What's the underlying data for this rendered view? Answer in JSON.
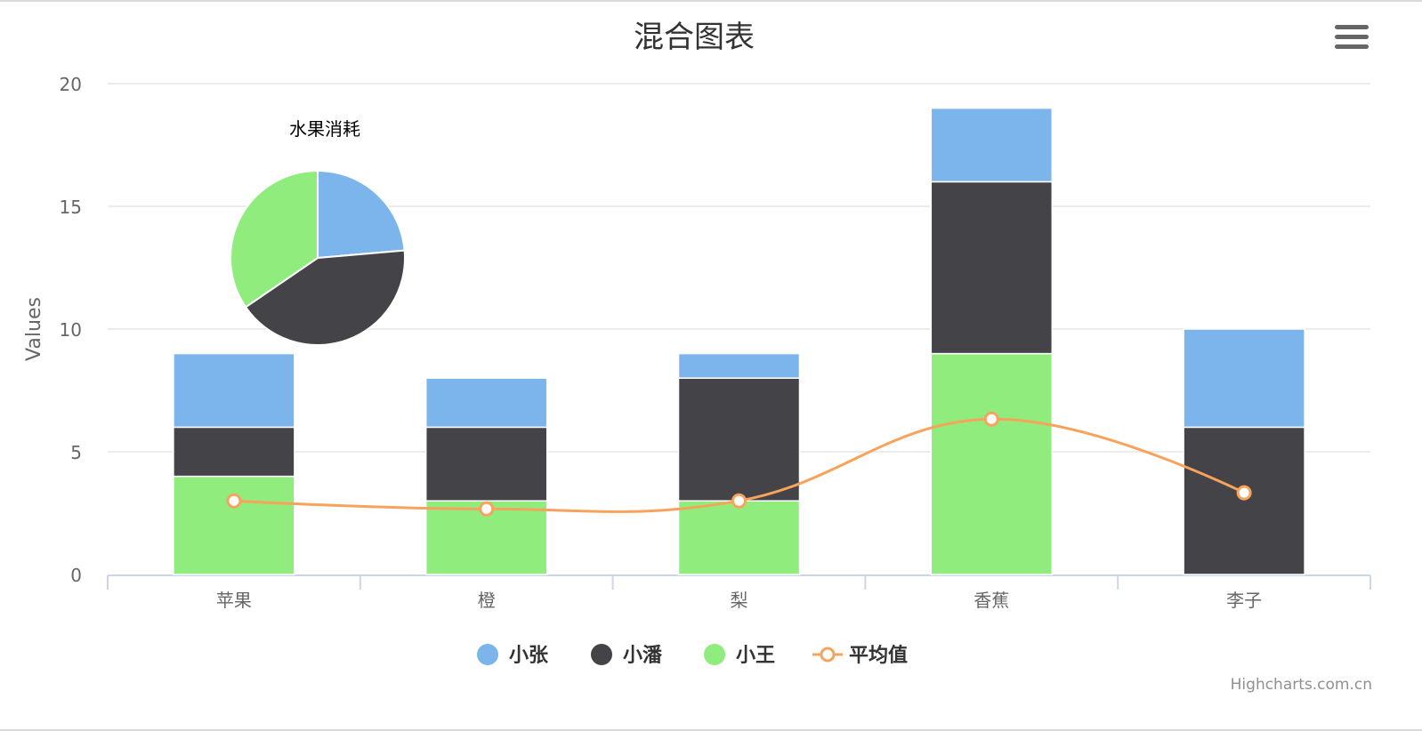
{
  "chart_data": {
    "type": "bar",
    "title": "混合图表",
    "ylabel": "Values",
    "xlabel": "",
    "ylim": [
      0,
      20
    ],
    "yticks": [
      0,
      5,
      10,
      15,
      20
    ],
    "grid": true,
    "stacked": true,
    "legend_position": "bottom-center",
    "categories": [
      "苹果",
      "橙",
      "梨",
      "香蕉",
      "李子"
    ],
    "series": [
      {
        "name": "小张",
        "type": "column",
        "color": "#7cb5ec",
        "values": [
          3,
          2,
          1,
          3,
          4
        ]
      },
      {
        "name": "小潘",
        "type": "column",
        "color": "#434348",
        "values": [
          2,
          3,
          5,
          7,
          6
        ]
      },
      {
        "name": "小王",
        "type": "column",
        "color": "#90ed7d",
        "values": [
          4,
          3,
          3,
          9,
          0
        ]
      },
      {
        "name": "平均值",
        "type": "spline",
        "color": "#f7a35c",
        "values": [
          3,
          2.67,
          3,
          6.33,
          3.33
        ]
      }
    ],
    "pie": {
      "title": "水果消耗",
      "slices": [
        {
          "name": "小张",
          "value": 13,
          "color": "#7cb5ec"
        },
        {
          "name": "小潘",
          "value": 23,
          "color": "#434348"
        },
        {
          "name": "小王",
          "value": 19,
          "color": "#90ed7d"
        }
      ]
    }
  },
  "credits": "Highcharts.com.cn",
  "icons": {
    "menu": "hamburger-menu-icon"
  }
}
